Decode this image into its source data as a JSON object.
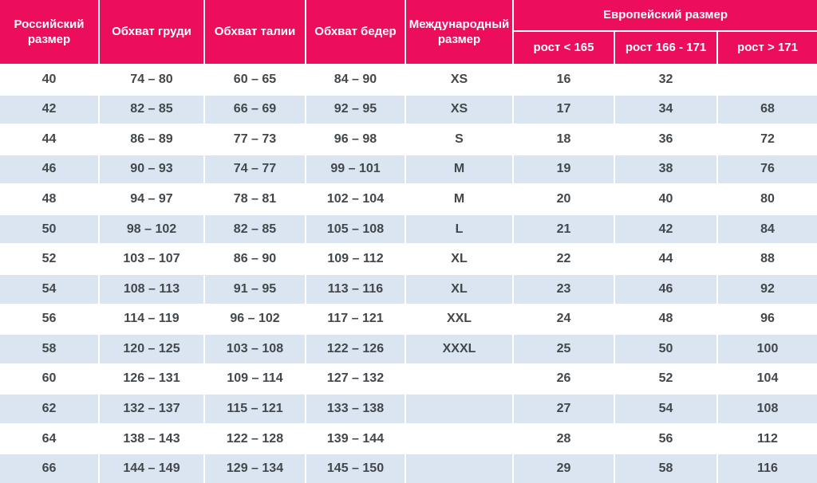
{
  "chart_data": {
    "type": "table",
    "header": {
      "russian_size": "Российский размер",
      "chest": "Обхват груди",
      "waist": "Обхват талии",
      "hips": "Обхват бедер",
      "international_size": "Международный размер",
      "european_size": "Европейский размер",
      "height_under_165": "рост < 165",
      "height_166_171": "рост 166 - 171",
      "height_over_171": "рост > 171"
    },
    "rows": [
      [
        "40",
        "74 – 80",
        "60 – 65",
        "84 – 90",
        "XS",
        "16",
        "32",
        ""
      ],
      [
        "42",
        "82 – 85",
        "66 – 69",
        "92 – 95",
        "XS",
        "17",
        "34",
        "68"
      ],
      [
        "44",
        "86 – 89",
        "77 – 73",
        "96 – 98",
        "S",
        "18",
        "36",
        "72"
      ],
      [
        "46",
        "90 – 93",
        "74 – 77",
        "99 – 101",
        "M",
        "19",
        "38",
        "76"
      ],
      [
        "48",
        "94 – 97",
        "78 – 81",
        "102 – 104",
        "M",
        "20",
        "40",
        "80"
      ],
      [
        "50",
        "98 – 102",
        "82 – 85",
        "105 – 108",
        "L",
        "21",
        "42",
        "84"
      ],
      [
        "52",
        "103 – 107",
        "86 – 90",
        "109 – 112",
        "XL",
        "22",
        "44",
        "88"
      ],
      [
        "54",
        "108 – 113",
        "91 – 95",
        "113 – 116",
        "XL",
        "23",
        "46",
        "92"
      ],
      [
        "56",
        "114 – 119",
        "96 – 102",
        "117 – 121",
        "XXL",
        "24",
        "48",
        "96"
      ],
      [
        "58",
        "120 – 125",
        "103 – 108",
        "122 – 126",
        "XXXL",
        "25",
        "50",
        "100"
      ],
      [
        "60",
        "126 – 131",
        "109 – 114",
        "127 – 132",
        "",
        "26",
        "52",
        "104"
      ],
      [
        "62",
        "132 – 137",
        "115 – 121",
        "133 – 138",
        "",
        "27",
        "54",
        "108"
      ],
      [
        "64",
        "138 – 143",
        "122 – 128",
        "139 – 144",
        "",
        "28",
        "56",
        "112"
      ],
      [
        "66",
        "144 – 149",
        "129 – 134",
        "145 – 150",
        "",
        "29",
        "58",
        "116"
      ]
    ]
  },
  "colors": {
    "header_bg": "#ec0e5d",
    "header_text": "#ffffff",
    "row_bg": "#ffffff",
    "row_alt_bg": "#dbe5f1",
    "cell_text": "#42474c",
    "separator": "#ffffff"
  }
}
